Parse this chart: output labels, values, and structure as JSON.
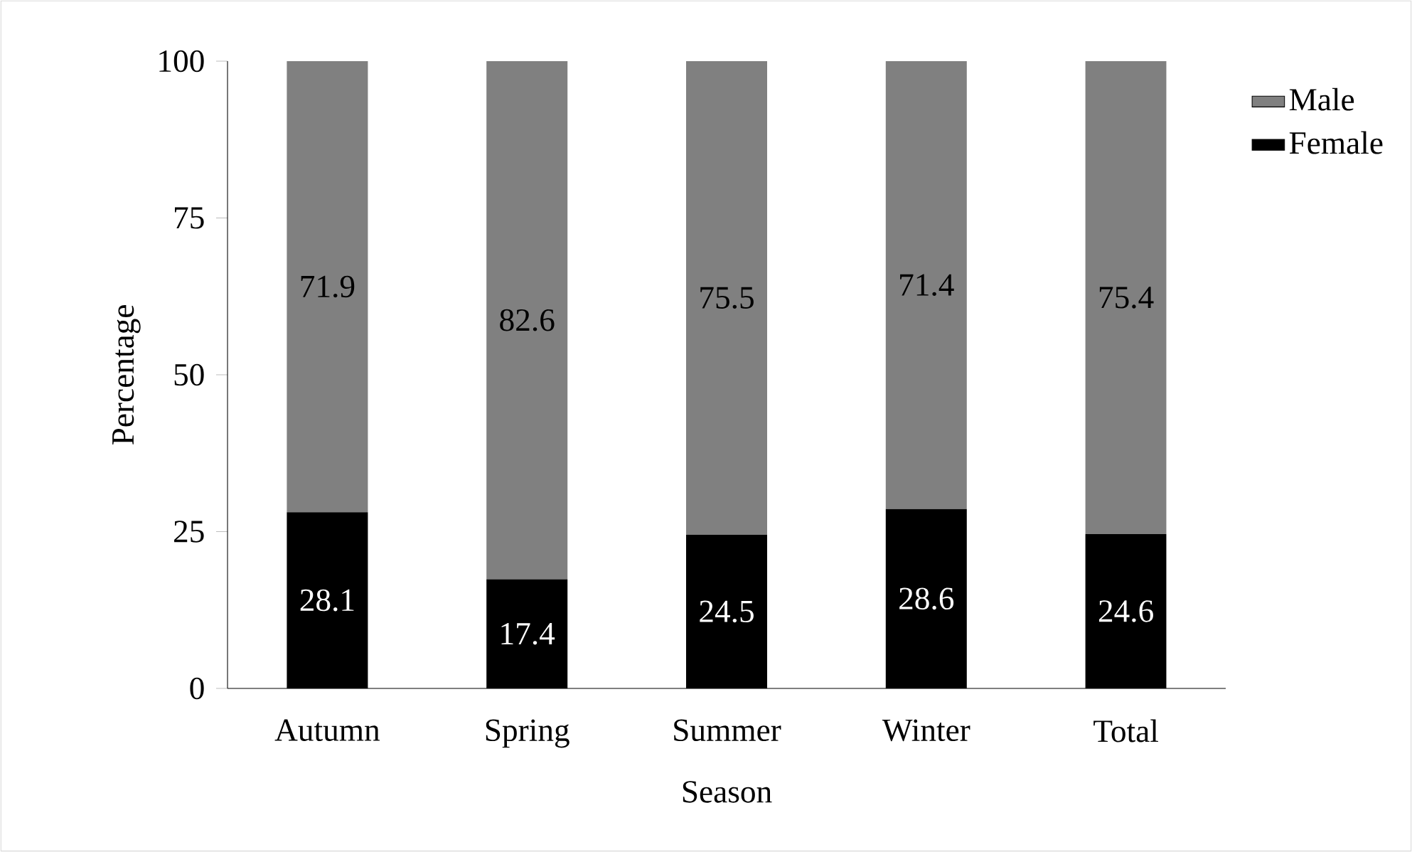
{
  "chart_data": {
    "type": "bar",
    "stacked": true,
    "data_labels": true,
    "xlabel": "Season",
    "ylabel": "Percentage",
    "categories": [
      "Autumn",
      "Spring",
      "Summer",
      "Winter",
      "Total"
    ],
    "series": [
      {
        "name": "Female",
        "color": "#000000",
        "values": [
          28.1,
          17.4,
          24.5,
          28.6,
          24.6
        ]
      },
      {
        "name": "Male",
        "color": "#808080",
        "values": [
          71.9,
          82.6,
          75.5,
          71.4,
          75.4
        ]
      }
    ],
    "ylim": [
      0,
      100
    ],
    "yticks": [
      0,
      25,
      50,
      75,
      100
    ],
    "legend": "right"
  }
}
